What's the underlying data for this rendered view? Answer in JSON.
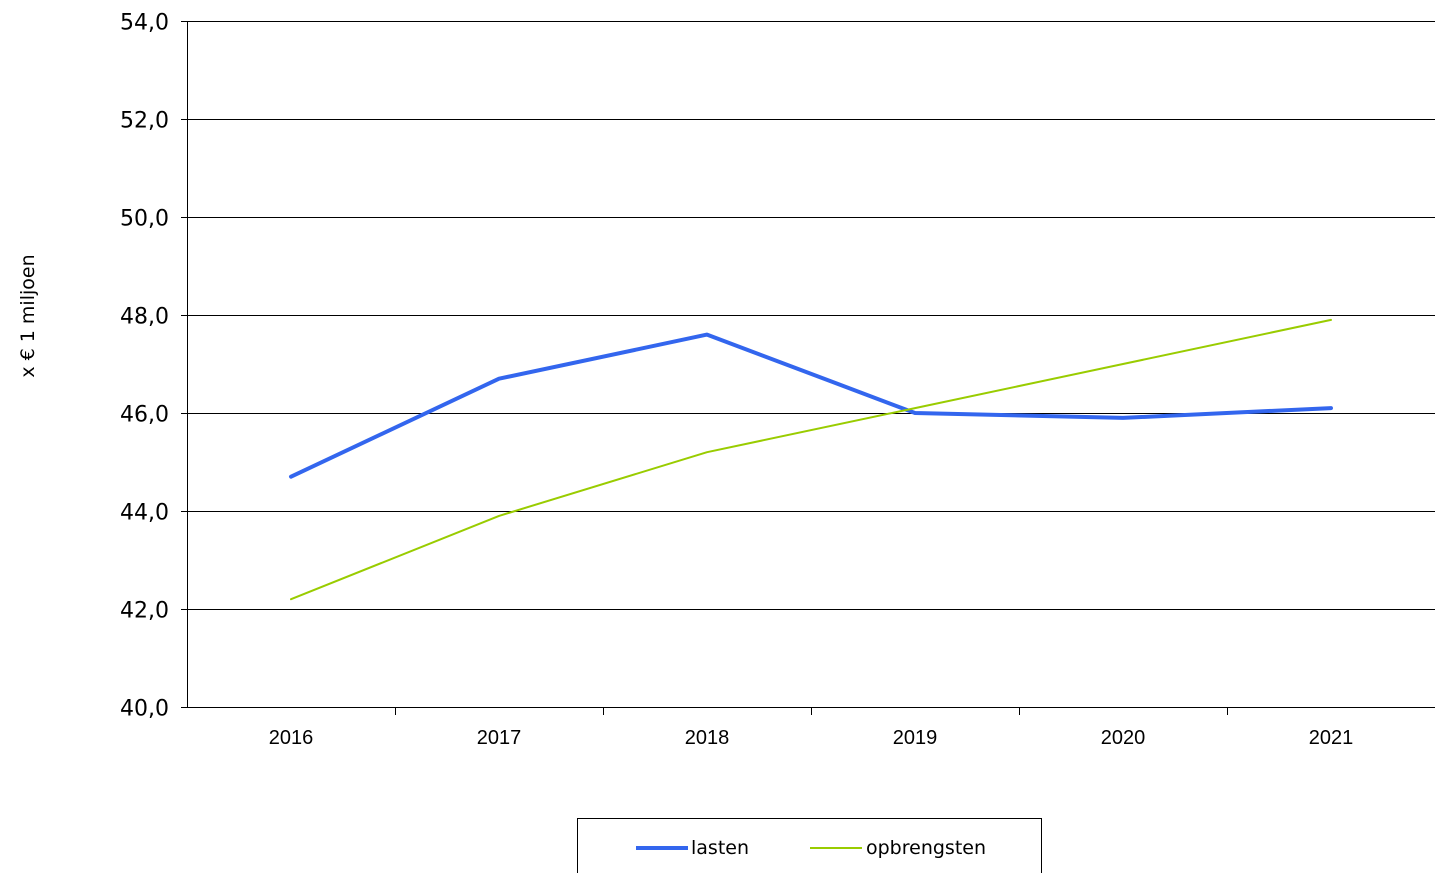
{
  "chart_data": {
    "type": "line",
    "ylabel": "x € 1 miljoen",
    "xlabel": "",
    "categories": [
      "2016",
      "2017",
      "2018",
      "2019",
      "2020",
      "2021"
    ],
    "ylim": [
      40.0,
      54.0
    ],
    "yticks": [
      "40,0",
      "42,0",
      "44,0",
      "46,0",
      "48,0",
      "50,0",
      "52,0",
      "54,0"
    ],
    "grid": true,
    "legend_position": "bottom",
    "series": [
      {
        "name": "lasten",
        "color": "#3366ee",
        "values": [
          44.7,
          46.7,
          47.6,
          46.0,
          45.9,
          46.1
        ]
      },
      {
        "name": "opbrengsten",
        "color": "#99cc00",
        "values": [
          42.2,
          43.9,
          45.2,
          46.1,
          47.0,
          47.9
        ]
      }
    ]
  }
}
